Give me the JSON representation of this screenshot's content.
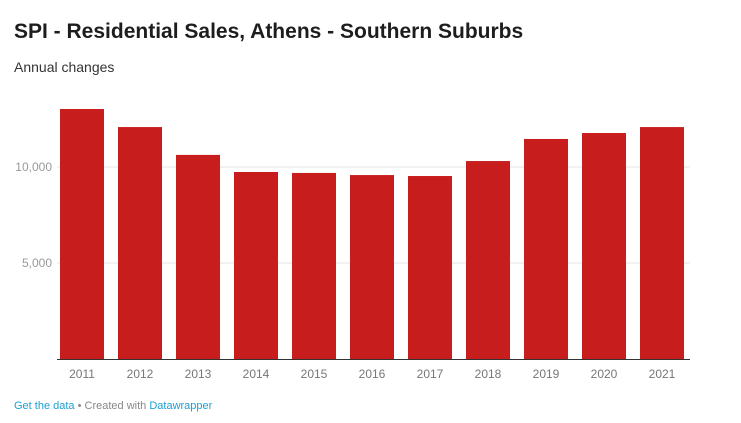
{
  "chart_data": {
    "type": "bar",
    "title": "SPI - Residential Sales, Athens - Southern Suburbs",
    "subtitle": "Annual changes",
    "categories": [
      "2011",
      "2012",
      "2013",
      "2014",
      "2015",
      "2016",
      "2017",
      "2018",
      "2019",
      "2020",
      "2021"
    ],
    "values": [
      13020,
      12080,
      10630,
      9740,
      9690,
      9580,
      9530,
      10310,
      11460,
      11770,
      12080
    ],
    "xlabel": "",
    "ylabel": "",
    "ylim": [
      0,
      13500
    ],
    "yticks": [
      {
        "value": 5000,
        "label": "5,000"
      },
      {
        "value": 10000,
        "label": "10,000"
      }
    ],
    "grid": true,
    "bar_color": "#c71e1d"
  },
  "footer": {
    "get_data": "Get the data",
    "sep": " • Created with ",
    "datawrapper": "Datawrapper"
  }
}
